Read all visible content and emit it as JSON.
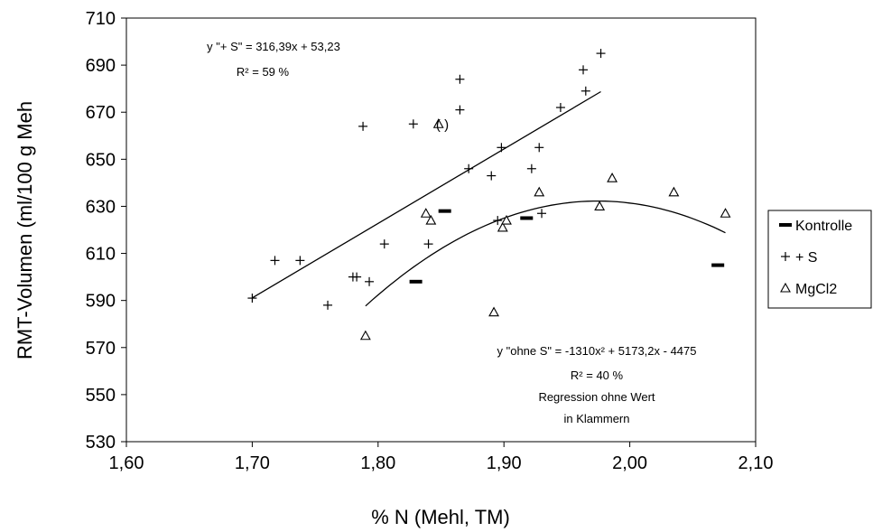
{
  "chart_data": {
    "type": "scatter",
    "xlabel": "% N (Mehl, TM)",
    "ylabel": "RMT-Volumen (ml/100 g Meh",
    "xlim": [
      1.6,
      2.1
    ],
    "ylim": [
      530,
      710
    ],
    "x_ticks": [
      1.6,
      1.7,
      1.8,
      1.9,
      2.0,
      2.1
    ],
    "x_tick_labels": [
      "1,60",
      "1,70",
      "1,80",
      "1,90",
      "2,00",
      "2,10"
    ],
    "y_ticks": [
      530,
      550,
      570,
      590,
      610,
      630,
      650,
      670,
      690,
      710
    ],
    "y_tick_labels": [
      "530",
      "550",
      "570",
      "590",
      "610",
      "630",
      "650",
      "670",
      "690",
      "710"
    ],
    "grid": false,
    "legend_position": "right",
    "series": [
      {
        "name": "Kontrolle",
        "marker": "dash",
        "points": [
          [
            1.83,
            598
          ],
          [
            1.853,
            628
          ],
          [
            1.918,
            625
          ],
          [
            2.07,
            605
          ]
        ]
      },
      {
        "name": "+ S",
        "marker": "plus",
        "points": [
          [
            1.7,
            591
          ],
          [
            1.718,
            607
          ],
          [
            1.738,
            607
          ],
          [
            1.76,
            588
          ],
          [
            1.78,
            600
          ],
          [
            1.783,
            600
          ],
          [
            1.788,
            664
          ],
          [
            1.793,
            598
          ],
          [
            1.805,
            614
          ],
          [
            1.828,
            665
          ],
          [
            1.84,
            614
          ],
          [
            1.865,
            684
          ],
          [
            1.865,
            671
          ],
          [
            1.872,
            646
          ],
          [
            1.89,
            643
          ],
          [
            1.895,
            624
          ],
          [
            1.898,
            655
          ],
          [
            1.922,
            646
          ],
          [
            1.928,
            655
          ],
          [
            1.93,
            627
          ],
          [
            1.945,
            672
          ],
          [
            1.963,
            688
          ],
          [
            1.965,
            679
          ],
          [
            1.977,
            695
          ]
        ]
      },
      {
        "name": "MgCl2",
        "marker": "triangle",
        "points": [
          [
            1.79,
            575
          ],
          [
            1.838,
            627
          ],
          [
            1.842,
            624
          ],
          [
            1.848,
            665
          ],
          [
            1.892,
            585
          ],
          [
            1.899,
            621
          ],
          [
            1.902,
            624
          ],
          [
            1.928,
            636
          ],
          [
            1.976,
            630
          ],
          [
            1.986,
            642
          ],
          [
            2.035,
            636
          ],
          [
            2.076,
            627
          ]
        ]
      }
    ],
    "trendlines": [
      {
        "series": "+ S",
        "kind": "linear",
        "a": 316.39,
        "b": 53.23,
        "x_range": [
          1.7,
          1.977
        ]
      },
      {
        "series": "ohne S",
        "kind": "poly2",
        "a": -1310,
        "b": 5173.2,
        "c": -4475,
        "x_range": [
          1.79,
          2.076
        ]
      }
    ],
    "annotations": {
      "paren_point": "(   )",
      "eq_plus_s": "y \"+ S\" = 316,39x + 53,23",
      "r2_plus_s": "R² = 59 %",
      "eq_ohne_s": "y \"ohne S\" = -1310x² + 5173,2x - 4475",
      "r2_ohne_s": "R² = 40 %",
      "note_line1": "Regression ohne Wert",
      "note_line2": "in Klammern"
    }
  }
}
